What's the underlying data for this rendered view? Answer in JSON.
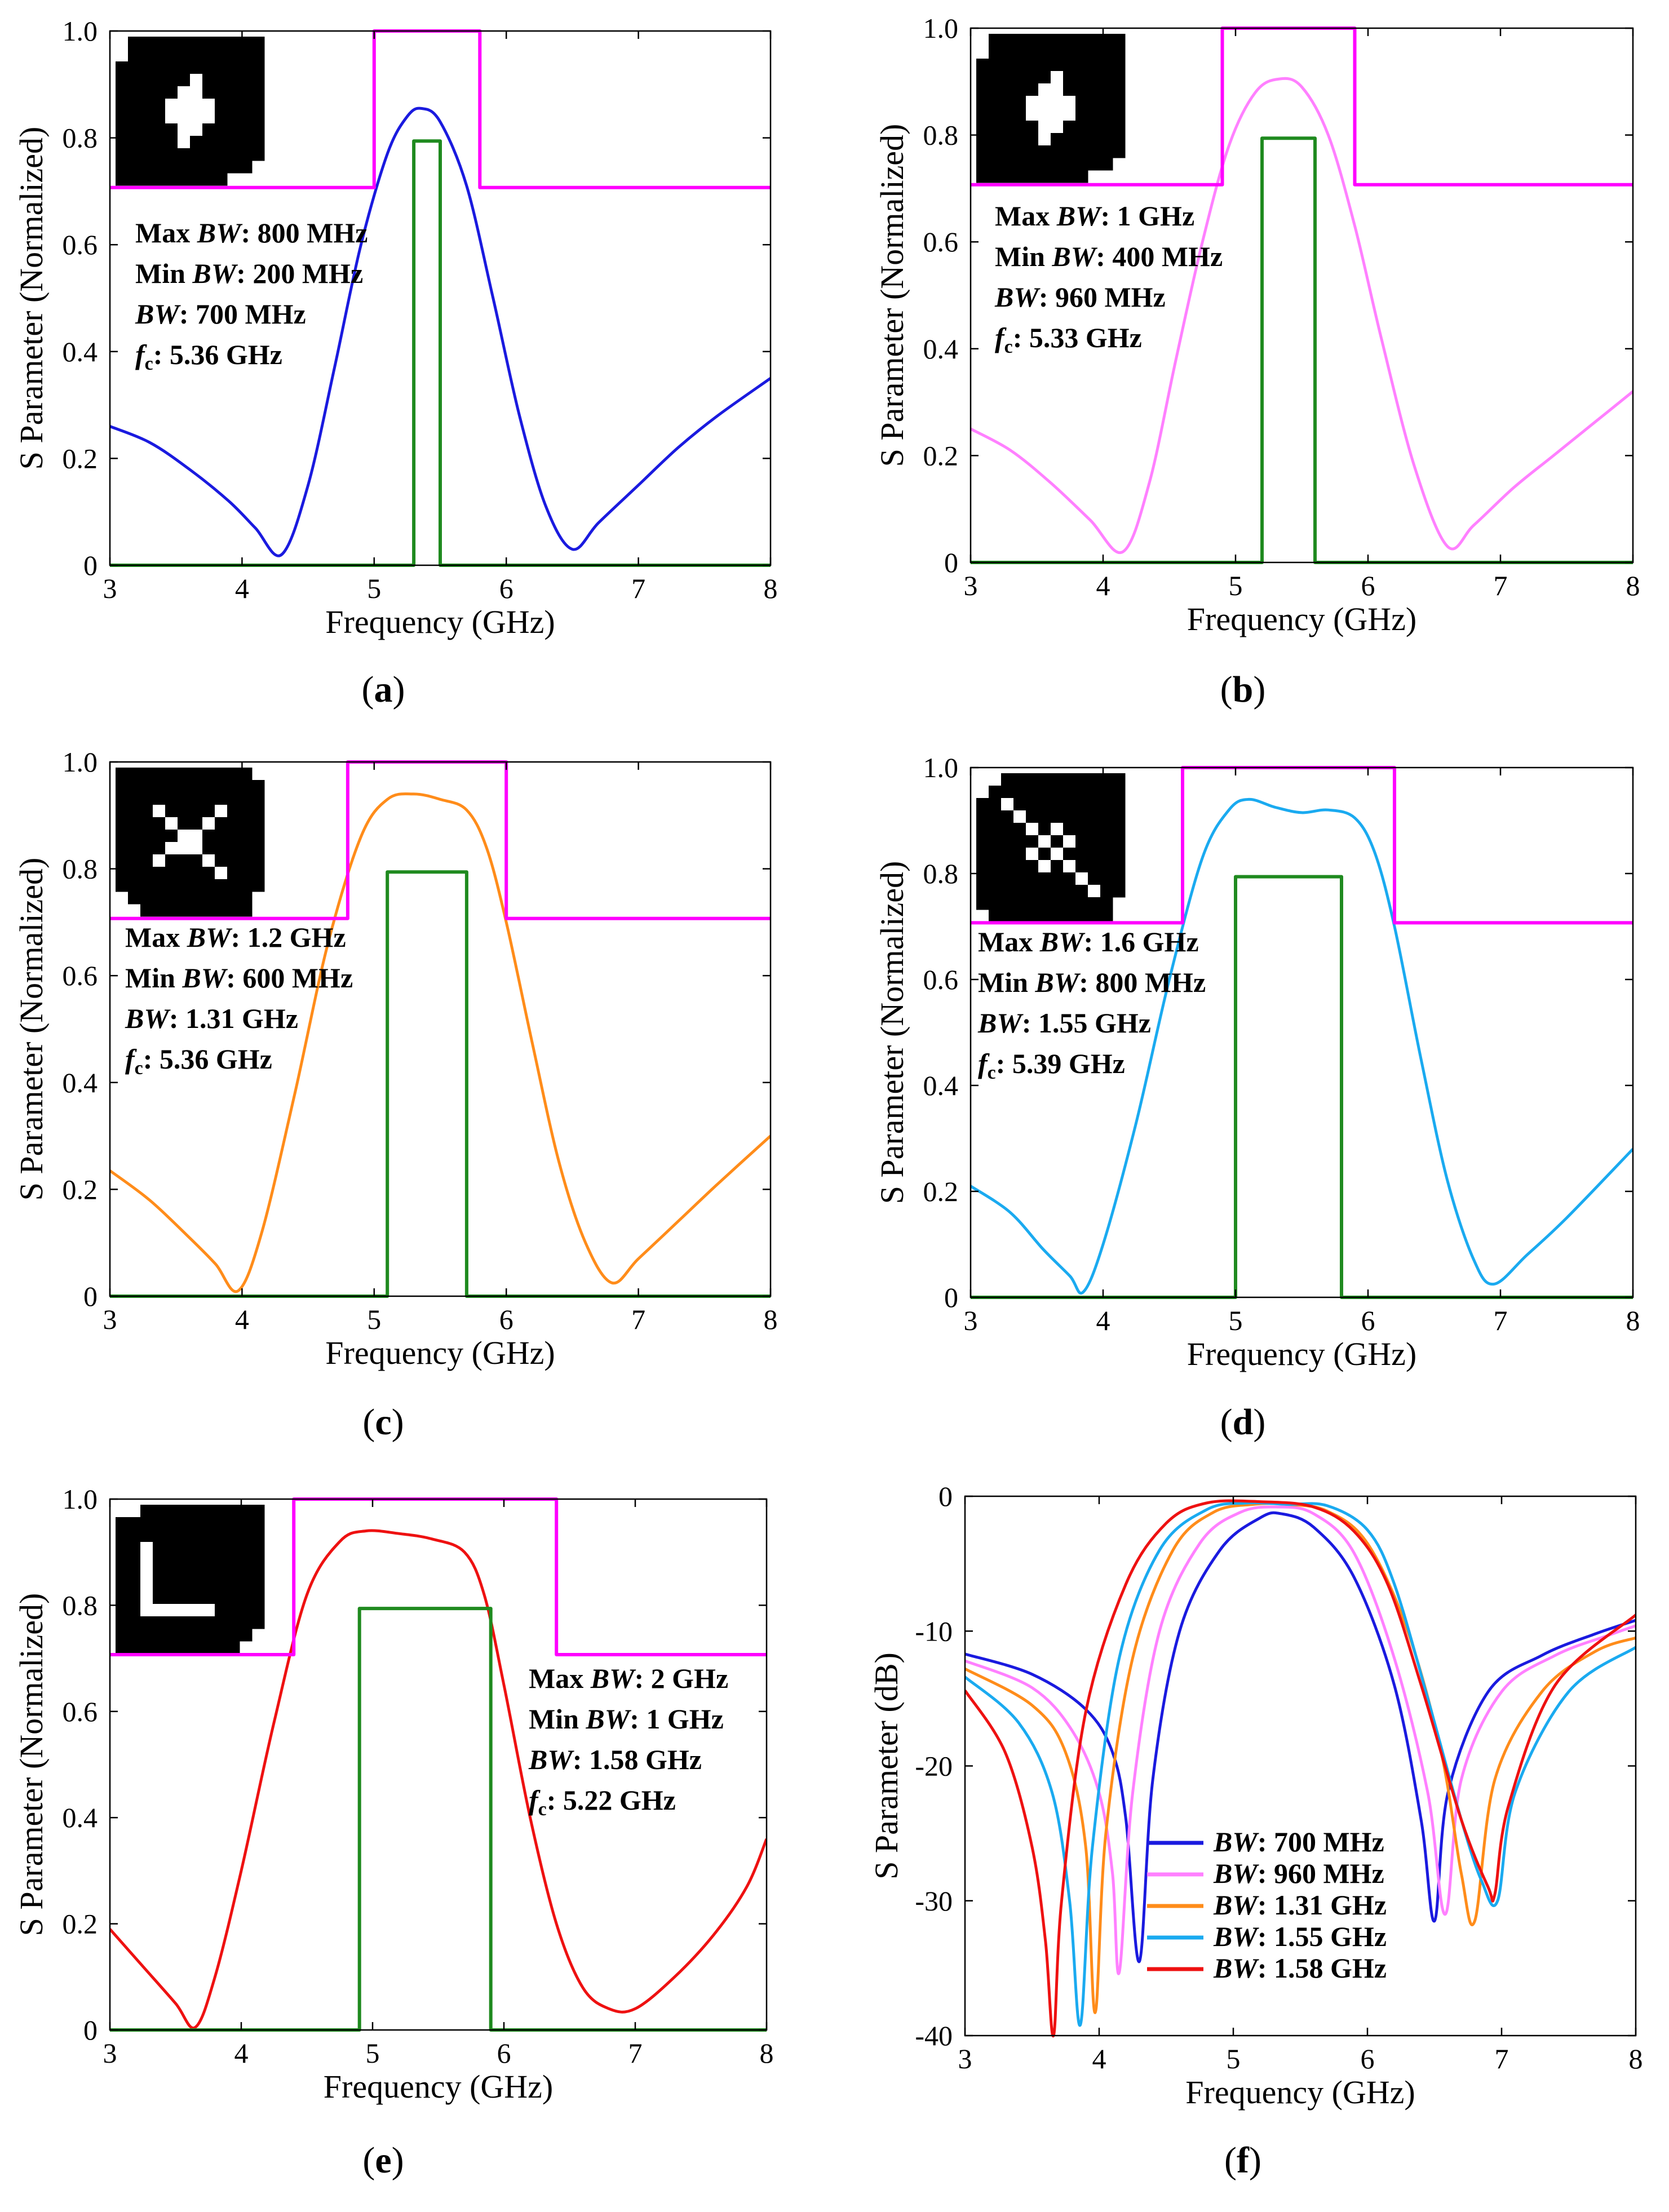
{
  "figure": {
    "colors": {
      "magenta": "#ff00ff",
      "green": "#1f8a1f",
      "axis": "#000000"
    },
    "panels": [
      {
        "id": "a",
        "caption": "a",
        "xlabel": "Frequency (GHz)",
        "ylabel": "S Parameter (Normalized)",
        "annotations": [
          {
            "label": "Max ",
            "em": "BW",
            "value": ": 800 MHz"
          },
          {
            "label": "Min ",
            "em": "BW",
            "value": ": 200 MHz"
          },
          {
            "label": "",
            "em": "BW",
            "value": ": 700 MHz"
          },
          {
            "label": "",
            "em": "f",
            "sub": "c",
            "value": ": 5.36 GHz"
          }
        ],
        "inset_pattern": "cross-blob"
      },
      {
        "id": "b",
        "caption": "b",
        "xlabel": "Frequency (GHz)",
        "ylabel": "S Parameter (Normalized)",
        "annotations": [
          {
            "label": "Max ",
            "em": "BW",
            "value": ": 1 GHz"
          },
          {
            "label": "Min ",
            "em": "BW",
            "value": ": 400 MHz"
          },
          {
            "label": "",
            "em": "BW",
            "value": ": 960 MHz"
          },
          {
            "label": "",
            "em": "f",
            "sub": "c",
            "value": ": 5.33 GHz"
          }
        ],
        "inset_pattern": "cross-blob"
      },
      {
        "id": "c",
        "caption": "c",
        "xlabel": "Frequency (GHz)",
        "ylabel": "S Parameter (Normalized)",
        "annotations": [
          {
            "label": "Max ",
            "em": "BW",
            "value": ": 1.2 GHz"
          },
          {
            "label": "Min ",
            "em": "BW",
            "value": ": 600 MHz"
          },
          {
            "label": "",
            "em": "BW",
            "value": ": 1.31 GHz"
          },
          {
            "label": "",
            "em": "f",
            "sub": "c",
            "value": ": 5.36 GHz"
          }
        ],
        "inset_pattern": "x-shape"
      },
      {
        "id": "d",
        "caption": "d",
        "xlabel": "Frequency (GHz)",
        "ylabel": "S Parameter (Normalized)",
        "annotations": [
          {
            "label": "Max ",
            "em": "BW",
            "value": ": 1.6 GHz"
          },
          {
            "label": "Min ",
            "em": "BW",
            "value": ": 800 MHz"
          },
          {
            "label": "",
            "em": "BW",
            "value": ": 1.55 GHz"
          },
          {
            "label": "",
            "em": "f",
            "sub": "c",
            "value": ": 5.39 GHz"
          }
        ],
        "inset_pattern": "diagonal"
      },
      {
        "id": "e",
        "caption": "e",
        "xlabel": "Frequency (GHz)",
        "ylabel": "S Parameter (Normalized)",
        "annotations": [
          {
            "label": "Max ",
            "em": "BW",
            "value": ": 2 GHz"
          },
          {
            "label": "Min ",
            "em": "BW",
            "value": ": 1 GHz"
          },
          {
            "label": "",
            "em": "BW",
            "value": ": 1.58 GHz"
          },
          {
            "label": "",
            "em": "f",
            "sub": "c",
            "value": ": 5.22 GHz"
          }
        ],
        "inset_pattern": "l-shape"
      },
      {
        "id": "f",
        "caption": "f",
        "xlabel": "Frequency (GHz)",
        "ylabel": "S Parameter (dB)",
        "legend": [
          {
            "em": "BW",
            "value": ": 700 MHz",
            "color": "#1a1adf"
          },
          {
            "em": "BW",
            "value": ": 960 MHz",
            "color": "#ff80ff"
          },
          {
            "em": "BW",
            "value": ": 1.31 GHz",
            "color": "#ff8c1a"
          },
          {
            "em": "BW",
            "value": ": 1.55 GHz",
            "color": "#1aaaf0"
          },
          {
            "em": "BW",
            "value": ": 1.58 GHz",
            "color": "#ee1111"
          }
        ]
      }
    ]
  },
  "chart_data": [
    {
      "type": "line",
      "panel": "a",
      "xlim": [
        3,
        8
      ],
      "ylim": [
        0,
        1
      ],
      "x_ticks": [
        3,
        4,
        5,
        6,
        7,
        8
      ],
      "y_ticks": [
        0,
        0.2,
        0.4,
        0.6,
        0.8,
        1.0
      ],
      "series": [
        {
          "name": "Response",
          "color": "#1a1adf",
          "x": [
            3,
            3.3,
            3.6,
            3.9,
            4.1,
            4.3,
            4.5,
            4.7,
            4.9,
            5.1,
            5.25,
            5.36,
            5.5,
            5.7,
            5.9,
            6.1,
            6.3,
            6.5,
            6.7,
            7.0,
            7.3,
            7.6,
            8.0
          ],
          "y": [
            0.26,
            0.23,
            0.18,
            0.12,
            0.07,
            0.02,
            0.15,
            0.37,
            0.6,
            0.77,
            0.84,
            0.855,
            0.83,
            0.71,
            0.5,
            0.28,
            0.11,
            0.03,
            0.08,
            0.15,
            0.22,
            0.28,
            0.35
          ]
        },
        {
          "name": "Upper mask",
          "color": "#ff00ff",
          "x": [
            3,
            5.0,
            5.0,
            5.8,
            5.8,
            8
          ],
          "y": [
            0.707,
            0.707,
            1.0,
            1.0,
            0.707,
            0.707
          ]
        },
        {
          "name": "Lower mask",
          "color": "#1f8a1f",
          "x": [
            3,
            5.3,
            5.3,
            5.5,
            5.5,
            8
          ],
          "y": [
            0,
            0,
            0.794,
            0.794,
            0,
            0
          ]
        }
      ]
    },
    {
      "type": "line",
      "panel": "b",
      "xlim": [
        3,
        8
      ],
      "ylim": [
        0,
        1
      ],
      "x_ticks": [
        3,
        4,
        5,
        6,
        7,
        8
      ],
      "y_ticks": [
        0,
        0.2,
        0.4,
        0.6,
        0.8,
        1.0
      ],
      "series": [
        {
          "name": "Response",
          "color": "#ff80ff",
          "x": [
            3,
            3.3,
            3.6,
            3.9,
            4.15,
            4.35,
            4.55,
            4.75,
            4.95,
            5.15,
            5.33,
            5.5,
            5.7,
            5.9,
            6.1,
            6.35,
            6.6,
            6.8,
            7.1,
            7.4,
            7.7,
            8.0
          ],
          "y": [
            0.25,
            0.21,
            0.15,
            0.08,
            0.02,
            0.15,
            0.38,
            0.6,
            0.78,
            0.88,
            0.905,
            0.89,
            0.8,
            0.63,
            0.42,
            0.18,
            0.03,
            0.07,
            0.14,
            0.2,
            0.26,
            0.32
          ]
        },
        {
          "name": "Upper mask",
          "color": "#ff00ff",
          "x": [
            3,
            4.9,
            4.9,
            5.9,
            5.9,
            8
          ],
          "y": [
            0.707,
            0.707,
            1.0,
            1.0,
            0.707,
            0.707
          ]
        },
        {
          "name": "Lower mask",
          "color": "#1f8a1f",
          "x": [
            3,
            5.2,
            5.2,
            5.6,
            5.6,
            8
          ],
          "y": [
            0,
            0,
            0.794,
            0.794,
            0,
            0
          ]
        }
      ]
    },
    {
      "type": "line",
      "panel": "c",
      "xlim": [
        3,
        8
      ],
      "ylim": [
        0,
        1
      ],
      "x_ticks": [
        3,
        4,
        5,
        6,
        7,
        8
      ],
      "y_ticks": [
        0,
        0.2,
        0.4,
        0.6,
        0.8,
        1.0
      ],
      "series": [
        {
          "name": "Response",
          "color": "#ff8c1a",
          "x": [
            3,
            3.3,
            3.6,
            3.8,
            3.97,
            4.15,
            4.4,
            4.65,
            4.9,
            5.1,
            5.3,
            5.5,
            5.7,
            5.85,
            6.0,
            6.2,
            6.4,
            6.6,
            6.8,
            7.0,
            7.3,
            7.6,
            8.0
          ],
          "y": [
            0.235,
            0.18,
            0.11,
            0.06,
            0.01,
            0.12,
            0.38,
            0.66,
            0.86,
            0.93,
            0.94,
            0.93,
            0.91,
            0.84,
            0.7,
            0.47,
            0.25,
            0.1,
            0.025,
            0.07,
            0.14,
            0.21,
            0.3
          ]
        },
        {
          "name": "Upper mask",
          "color": "#ff00ff",
          "x": [
            3,
            4.8,
            4.8,
            6.0,
            6.0,
            8
          ],
          "y": [
            0.707,
            0.707,
            1.0,
            1.0,
            0.707,
            0.707
          ]
        },
        {
          "name": "Lower mask",
          "color": "#1f8a1f",
          "x": [
            3,
            5.1,
            5.1,
            5.7,
            5.7,
            8
          ],
          "y": [
            0,
            0,
            0.794,
            0.794,
            0,
            0
          ]
        }
      ]
    },
    {
      "type": "line",
      "panel": "d",
      "xlim": [
        3,
        8
      ],
      "ylim": [
        0,
        1
      ],
      "x_ticks": [
        3,
        4,
        5,
        6,
        7,
        8
      ],
      "y_ticks": [
        0,
        0.2,
        0.4,
        0.6,
        0.8,
        1.0
      ],
      "series": [
        {
          "name": "Response",
          "color": "#1aaaf0",
          "x": [
            3,
            3.3,
            3.55,
            3.75,
            3.85,
            4.0,
            4.25,
            4.5,
            4.75,
            4.95,
            5.1,
            5.3,
            5.5,
            5.7,
            5.9,
            6.05,
            6.2,
            6.4,
            6.6,
            6.8,
            6.95,
            7.2,
            7.5,
            8.0
          ],
          "y": [
            0.21,
            0.16,
            0.09,
            0.04,
            0.01,
            0.1,
            0.33,
            0.6,
            0.83,
            0.92,
            0.94,
            0.925,
            0.915,
            0.92,
            0.905,
            0.84,
            0.7,
            0.45,
            0.22,
            0.07,
            0.025,
            0.08,
            0.15,
            0.28
          ]
        },
        {
          "name": "Upper mask",
          "color": "#ff00ff",
          "x": [
            3,
            4.6,
            4.6,
            6.2,
            6.2,
            8
          ],
          "y": [
            0.707,
            0.707,
            1.0,
            1.0,
            0.707,
            0.707
          ]
        },
        {
          "name": "Lower mask",
          "color": "#1f8a1f",
          "x": [
            3,
            5.0,
            5.0,
            5.8,
            5.8,
            8
          ],
          "y": [
            0,
            0,
            0.794,
            0.794,
            0,
            0
          ]
        }
      ]
    },
    {
      "type": "line",
      "panel": "e",
      "xlim": [
        3,
        8
      ],
      "ylim": [
        0,
        1
      ],
      "x_ticks": [
        3,
        4,
        5,
        6,
        7,
        8
      ],
      "y_ticks": [
        0,
        0.2,
        0.4,
        0.6,
        0.8,
        1.0
      ],
      "series": [
        {
          "name": "Response",
          "color": "#ee1111",
          "x": [
            3,
            3.25,
            3.5,
            3.65,
            3.8,
            4.0,
            4.25,
            4.5,
            4.75,
            4.95,
            5.2,
            5.45,
            5.7,
            5.85,
            6.0,
            6.2,
            6.4,
            6.6,
            6.8,
            7.0,
            7.3,
            7.6,
            7.85,
            8.0
          ],
          "y": [
            0.19,
            0.12,
            0.05,
            0.005,
            0.1,
            0.3,
            0.58,
            0.82,
            0.92,
            0.94,
            0.935,
            0.925,
            0.9,
            0.82,
            0.65,
            0.4,
            0.2,
            0.08,
            0.04,
            0.04,
            0.1,
            0.18,
            0.27,
            0.36
          ]
        },
        {
          "name": "Upper mask",
          "color": "#ff00ff",
          "x": [
            3,
            4.4,
            4.4,
            6.4,
            6.4,
            8
          ],
          "y": [
            0.707,
            0.707,
            1.0,
            1.0,
            0.707,
            0.707
          ]
        },
        {
          "name": "Lower mask",
          "color": "#1f8a1f",
          "x": [
            3,
            4.9,
            4.9,
            5.9,
            5.9,
            8
          ],
          "y": [
            0,
            0,
            0.794,
            0.794,
            0,
            0
          ]
        }
      ]
    },
    {
      "type": "line",
      "panel": "f",
      "xlim": [
        3,
        8
      ],
      "ylim": [
        -40,
        0
      ],
      "x_ticks": [
        3,
        4,
        5,
        6,
        7,
        8
      ],
      "y_ticks": [
        -40,
        -30,
        -20,
        -10,
        0
      ],
      "series": [
        {
          "name": "BW: 700 MHz",
          "color": "#1a1adf",
          "x": [
            3,
            3.5,
            3.9,
            4.1,
            4.2,
            4.3,
            4.4,
            4.6,
            4.9,
            5.2,
            5.36,
            5.6,
            5.9,
            6.2,
            6.4,
            6.5,
            6.6,
            6.9,
            7.3,
            7.7,
            8.0
          ],
          "y": [
            -11.7,
            -13.2,
            -15.8,
            -19,
            -24,
            -34.5,
            -21,
            -10,
            -4,
            -1.6,
            -1.3,
            -2.3,
            -6,
            -14,
            -24,
            -31.5,
            -22,
            -14.5,
            -11.8,
            -10.2,
            -9.2
          ]
        },
        {
          "name": "BW: 960 MHz",
          "color": "#ff80ff",
          "x": [
            3,
            3.5,
            3.8,
            4.0,
            4.1,
            4.15,
            4.25,
            4.45,
            4.75,
            5.05,
            5.33,
            5.6,
            5.9,
            6.2,
            6.45,
            6.58,
            6.7,
            7.0,
            7.4,
            7.8,
            8.0
          ],
          "y": [
            -12.2,
            -14.2,
            -17.4,
            -22,
            -28,
            -35.3,
            -22,
            -10,
            -3.5,
            -1.2,
            -0.8,
            -1.3,
            -4.2,
            -12,
            -22,
            -31,
            -21,
            -14.5,
            -11.8,
            -10.3,
            -9.6
          ]
        },
        {
          "name": "BW: 1.31 GHz",
          "color": "#ff8c1a",
          "x": [
            3,
            3.5,
            3.75,
            3.9,
            3.97,
            4.05,
            4.25,
            4.55,
            4.85,
            5.15,
            5.4,
            5.7,
            6.0,
            6.3,
            6.55,
            6.7,
            6.8,
            6.95,
            7.3,
            7.7,
            8.0
          ],
          "y": [
            -12.8,
            -15.5,
            -19,
            -26,
            -38.3,
            -25,
            -12,
            -4,
            -1.2,
            -0.6,
            -0.6,
            -1.1,
            -3.5,
            -10,
            -19,
            -28,
            -31.5,
            -21,
            -14.5,
            -11.5,
            -10.5
          ]
        },
        {
          "name": "BW: 1.55 GHz",
          "color": "#1aaaf0",
          "x": [
            3,
            3.4,
            3.65,
            3.78,
            3.86,
            3.95,
            4.15,
            4.45,
            4.8,
            5.1,
            5.4,
            5.7,
            6.0,
            6.2,
            6.45,
            6.7,
            6.85,
            6.97,
            7.1,
            7.5,
            8.0
          ],
          "y": [
            -13.4,
            -16.8,
            -22,
            -30,
            -39.2,
            -26,
            -12,
            -4,
            -1,
            -0.5,
            -0.6,
            -0.7,
            -2.5,
            -6.5,
            -15,
            -24,
            -28.5,
            -30,
            -22,
            -14.5,
            -11.2
          ]
        },
        {
          "name": "BW: 1.58 GHz",
          "color": "#ee1111",
          "x": [
            3,
            3.3,
            3.5,
            3.6,
            3.66,
            3.72,
            3.9,
            4.2,
            4.5,
            4.8,
            5.2,
            5.6,
            5.9,
            6.15,
            6.4,
            6.7,
            6.9,
            6.95,
            7.05,
            7.4,
            8.0
          ],
          "y": [
            -14.4,
            -19,
            -26,
            -33,
            -40,
            -30,
            -16,
            -6.5,
            -2,
            -0.5,
            -0.4,
            -0.8,
            -2.6,
            -6.5,
            -14,
            -24,
            -29,
            -29.5,
            -23,
            -14,
            -8.8
          ]
        }
      ]
    }
  ]
}
